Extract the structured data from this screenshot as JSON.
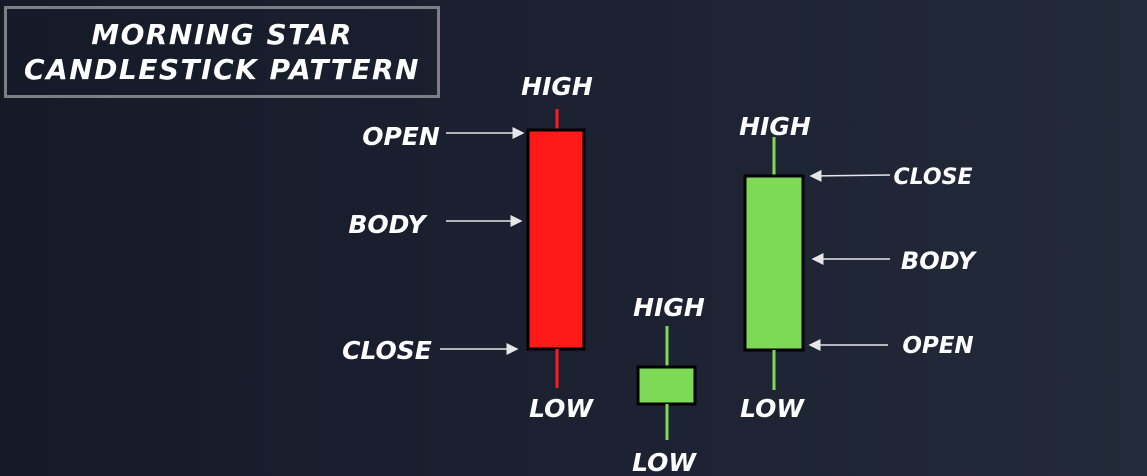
{
  "title": {
    "line1": "MORNING  STAR",
    "line2": "CANDLESTICK  PATTERN"
  },
  "colors": {
    "bearish": "#ff1a1a",
    "bullish": "#7ed957",
    "label": "#ffffff",
    "arrow": "#e6e6e6"
  },
  "candles": [
    {
      "name": "bearish-candle",
      "labels": {
        "high": "HIGH",
        "low": "LOW",
        "open": "OPEN",
        "body": "BODY",
        "close": "CLOSE"
      }
    },
    {
      "name": "star-candle",
      "labels": {
        "high": "HIGH",
        "low": "LOW"
      }
    },
    {
      "name": "bullish-candle",
      "labels": {
        "high": "HIGH",
        "low": "LOW",
        "close": "CLOSE",
        "body": "BODY",
        "open": "OPEN"
      }
    }
  ]
}
